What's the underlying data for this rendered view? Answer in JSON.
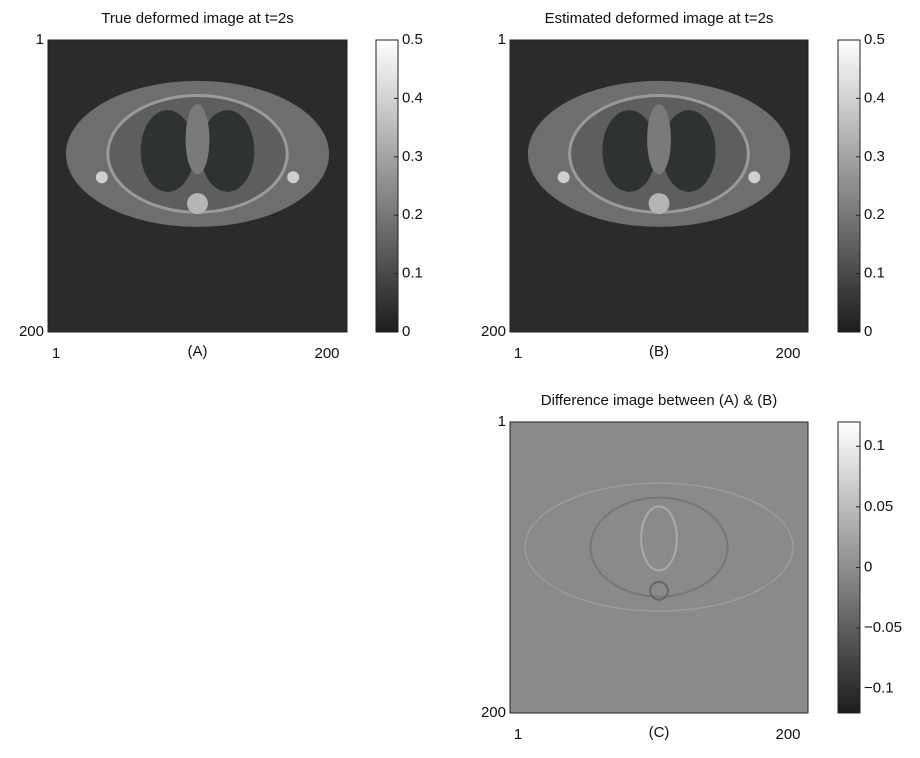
{
  "chart_data": [
    {
      "type": "image",
      "title": "True deformed image at t=2s",
      "label": "(A)",
      "xlim": [
        1,
        200
      ],
      "ylim": [
        1,
        200
      ],
      "xticks": [
        1,
        200
      ],
      "yticks": [
        1,
        200
      ],
      "colorbar": {
        "lim": [
          0,
          0.5
        ],
        "ticks": [
          0,
          0.1,
          0.2,
          0.3,
          0.4,
          0.5
        ]
      }
    },
    {
      "type": "image",
      "title": "Estimated deformed image at t=2s",
      "label": "(B)",
      "xlim": [
        1,
        200
      ],
      "ylim": [
        1,
        200
      ],
      "xticks": [
        1,
        200
      ],
      "yticks": [
        1,
        200
      ],
      "colorbar": {
        "lim": [
          0,
          0.5
        ],
        "ticks": [
          0,
          0.1,
          0.2,
          0.3,
          0.4,
          0.5
        ]
      }
    },
    {
      "type": "difference",
      "title": "Difference image between (A) & (B)",
      "label": "(C)",
      "xlim": [
        1,
        200
      ],
      "ylim": [
        1,
        200
      ],
      "xticks": [
        1,
        200
      ],
      "yticks": [
        1,
        200
      ],
      "colorbar": {
        "lim": [
          -0.12,
          0.12
        ],
        "ticks": [
          {
            "value": -0.1,
            "label": "−0.1"
          },
          {
            "value": -0.05,
            "label": "−0.05"
          },
          0,
          0.05,
          0.1
        ]
      }
    }
  ]
}
